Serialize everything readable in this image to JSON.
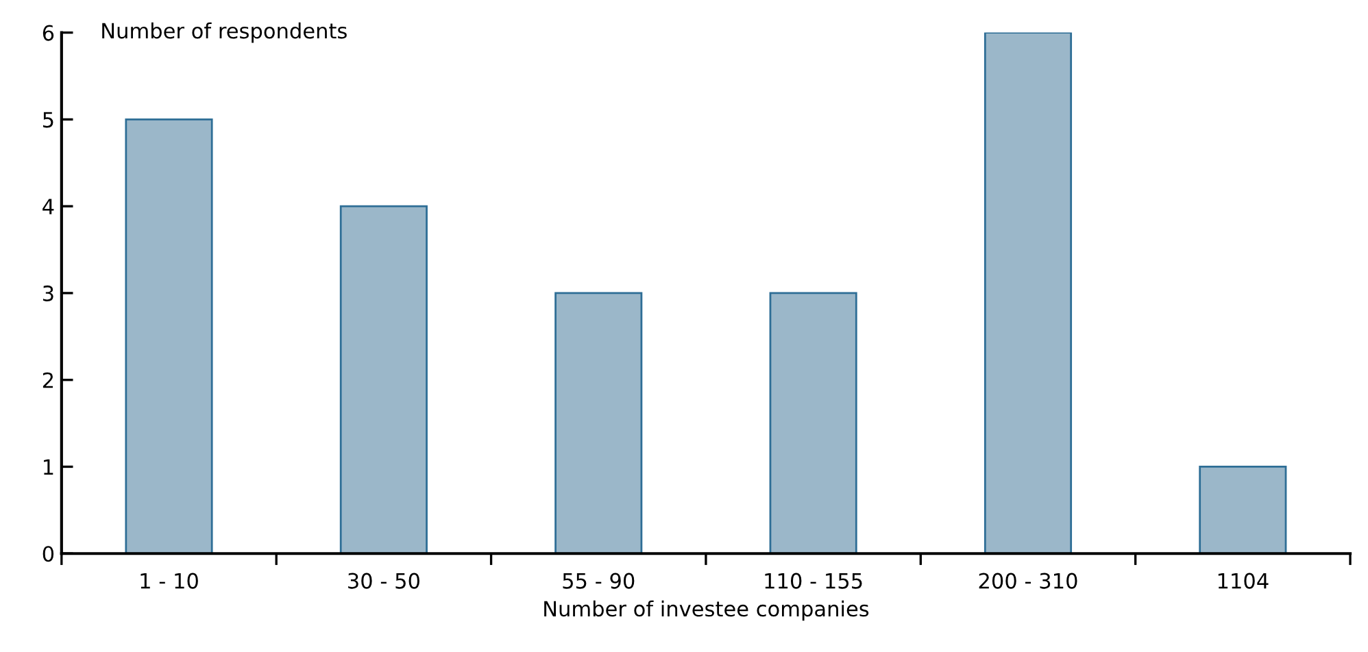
{
  "chart_data": {
    "type": "bar",
    "xlabel": "Number of investee companies",
    "ylabel": "Number of respondents",
    "categories": [
      "1 - 10",
      "30 - 50",
      "55 - 90",
      "110 - 155",
      "200 - 310",
      "1104"
    ],
    "values": [
      5,
      4,
      3,
      3,
      6,
      1
    ],
    "color": "#9bb7c9",
    "ylim": [
      0,
      6
    ],
    "yticks": [
      0,
      1,
      2,
      3,
      4,
      5,
      6
    ],
    "grid": false,
    "legend": false
  }
}
